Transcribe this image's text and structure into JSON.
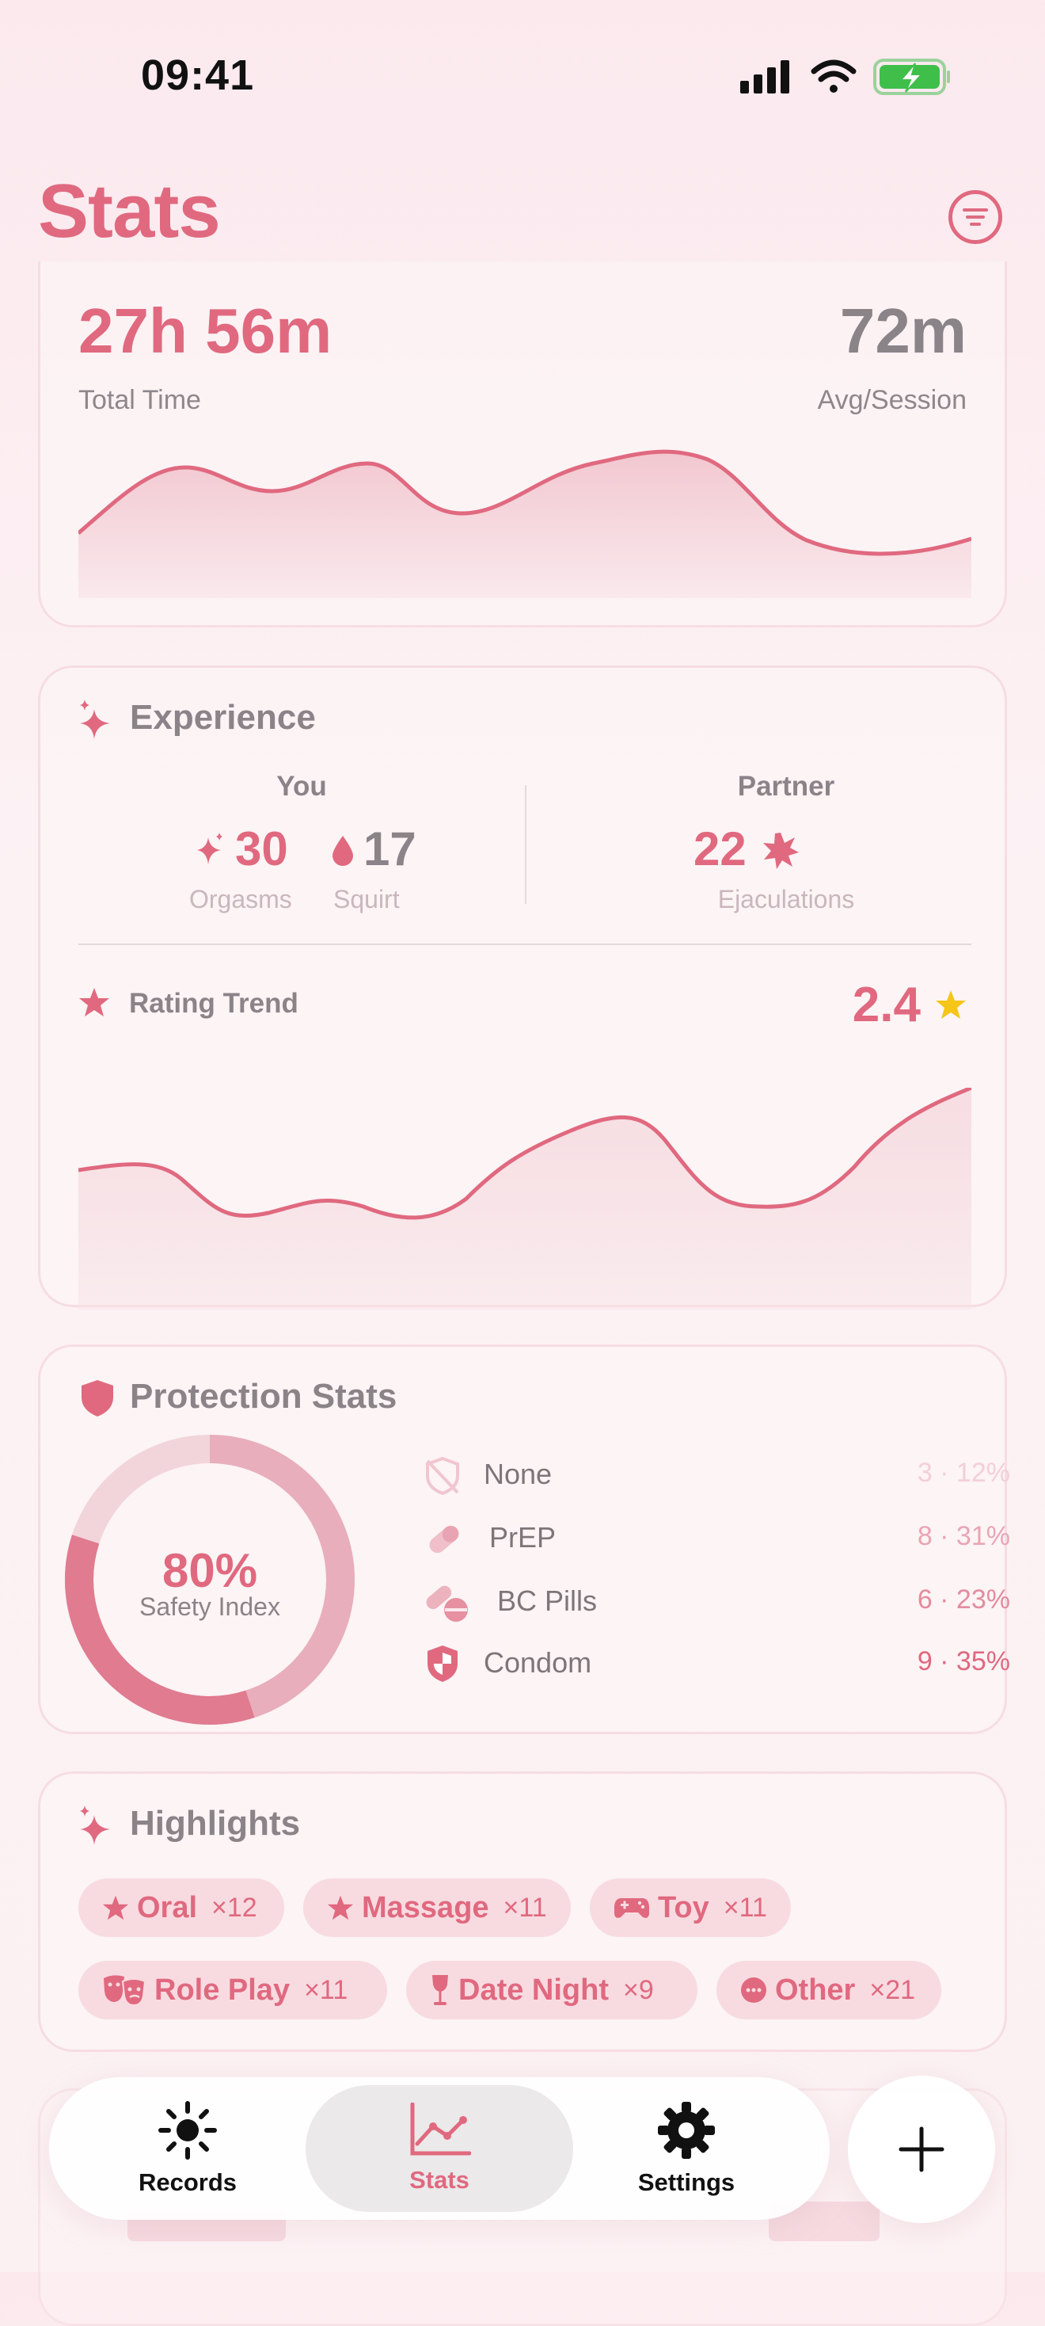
{
  "status_bar": {
    "time": "09:41"
  },
  "header": {
    "title": "Stats"
  },
  "time_card": {
    "total_time": "27h 56m",
    "total_time_label": "Total Time",
    "avg_session": "72m",
    "avg_session_label": "Avg/Session"
  },
  "experience": {
    "title": "Experience",
    "you_label": "You",
    "orgasms_value": "30",
    "orgasms_label": "Orgasms",
    "squirt_value": "17",
    "squirt_label": "Squirt",
    "partner_label": "Partner",
    "ejaculations_value": "22",
    "ejaculations_label": "Ejaculations",
    "rating_trend_label": "Rating Trend",
    "rating_value": "2.4"
  },
  "protection": {
    "title": "Protection Stats",
    "safety_value": "80%",
    "safety_label": "Safety Index",
    "items": [
      {
        "label": "None",
        "value": "3 · 12%",
        "icon": "shield-off-icon",
        "count": 3,
        "percent": 12
      },
      {
        "label": "PrEP",
        "value": "8 · 31%",
        "icon": "pill-icon",
        "count": 8,
        "percent": 31
      },
      {
        "label": "BC Pills",
        "value": "6 · 23%",
        "icon": "pills-icon",
        "count": 6,
        "percent": 23
      },
      {
        "label": "Condom",
        "value": "9 · 35%",
        "icon": "shield-icon",
        "count": 9,
        "percent": 35
      }
    ]
  },
  "highlights": {
    "title": "Highlights",
    "chips": [
      {
        "label": "Oral",
        "count": "×12",
        "icon": "star-icon"
      },
      {
        "label": "Massage",
        "count": "×11",
        "icon": "star-icon"
      },
      {
        "label": "Toy",
        "count": "×11",
        "icon": "gamepad-icon"
      },
      {
        "label": "Role Play",
        "count": "×11",
        "icon": "theater-masks-icon"
      },
      {
        "label": "Date Night",
        "count": "×9",
        "icon": "wine-glass-icon"
      },
      {
        "label": "Other",
        "count": "×21",
        "icon": "ellipsis-icon"
      }
    ]
  },
  "tabbar": {
    "records": "Records",
    "stats": "Stats",
    "settings": "Settings"
  },
  "colors": {
    "accent": "#e0697f",
    "accent_light": "#f8dbe1",
    "star": "#f5c518",
    "text": "#8a8388"
  }
}
